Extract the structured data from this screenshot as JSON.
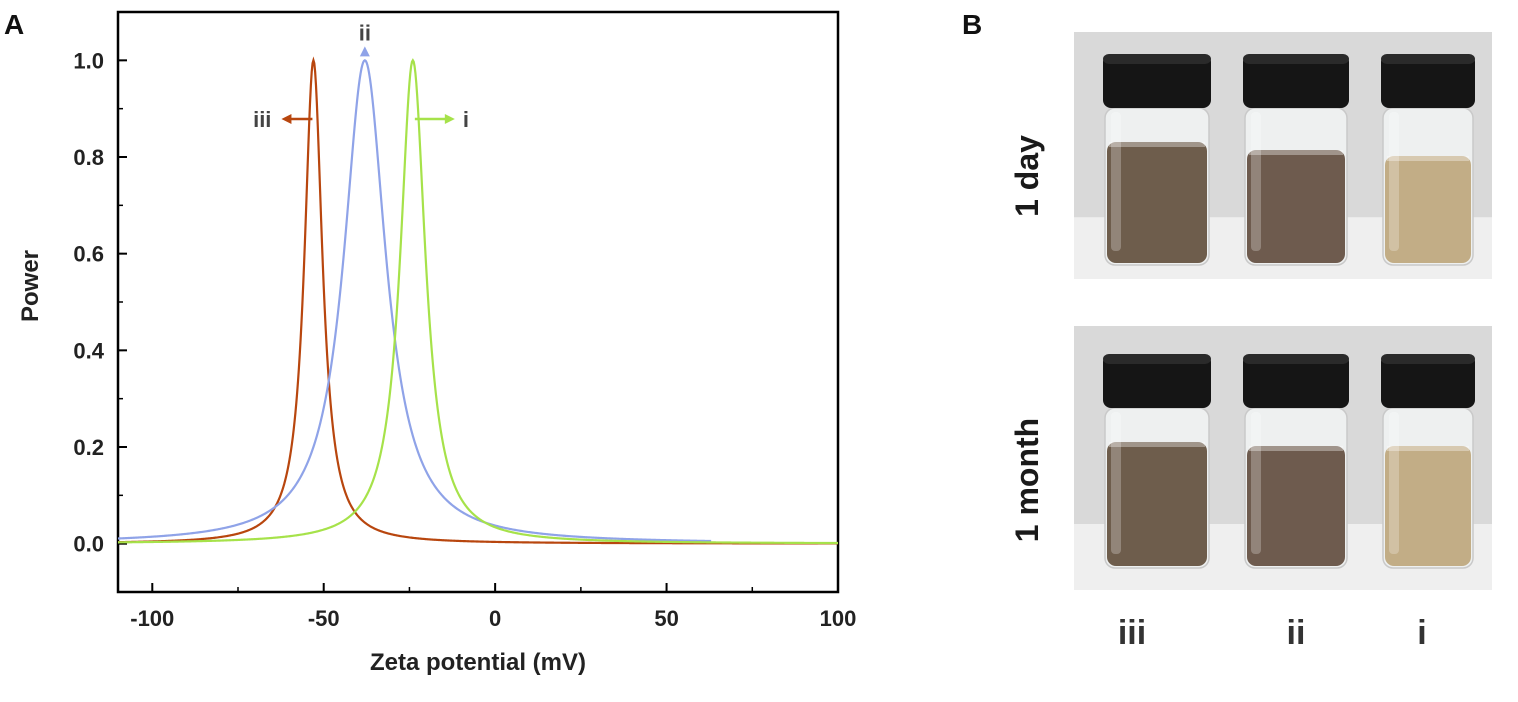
{
  "figure": {
    "panel_a_label": "A",
    "panel_b_label": "B"
  },
  "chart_data": {
    "type": "line",
    "xlabel": "Zeta potential (mV)",
    "ylabel": "Power",
    "xlim": [
      -110,
      100
    ],
    "ylim": [
      -0.1,
      1.1
    ],
    "xticks": [
      -100,
      -50,
      0,
      50,
      100
    ],
    "xtick_labels": [
      "-100",
      "-50",
      "0",
      "50",
      "100"
    ],
    "yticks": [
      0.0,
      0.2,
      0.4,
      0.6,
      0.8,
      1.0
    ],
    "ytick_labels": [
      "0.0",
      "0.2",
      "0.4",
      "0.6",
      "0.8",
      "1.0"
    ],
    "grid": false,
    "series": [
      {
        "name": "iii",
        "label": "iii",
        "color": "#b8460e",
        "peak_x": -53,
        "peak_y": 1.0,
        "half_width": 3.2,
        "x_end": 100,
        "arrow": "left"
      },
      {
        "name": "ii",
        "label": "ii",
        "color": "#8fa3e8",
        "peak_x": -38,
        "peak_y": 1.0,
        "half_width": 7.5,
        "x_end": 63,
        "arrow": "up"
      },
      {
        "name": "i",
        "label": "i",
        "color": "#a6e24a",
        "peak_x": -24,
        "peak_y": 1.0,
        "half_width": 4.5,
        "x_end": 100,
        "arrow": "right"
      }
    ]
  },
  "photos": {
    "rows": [
      {
        "label": "1 day"
      },
      {
        "label": "1 month"
      }
    ],
    "sample_labels": [
      "iii",
      "ii",
      "i"
    ],
    "vial_colors": [
      "#6e5d4c",
      "#6e5b4e",
      "#c2ad86"
    ],
    "cap_color": "#151515",
    "background_color": "#d9d9d9"
  }
}
